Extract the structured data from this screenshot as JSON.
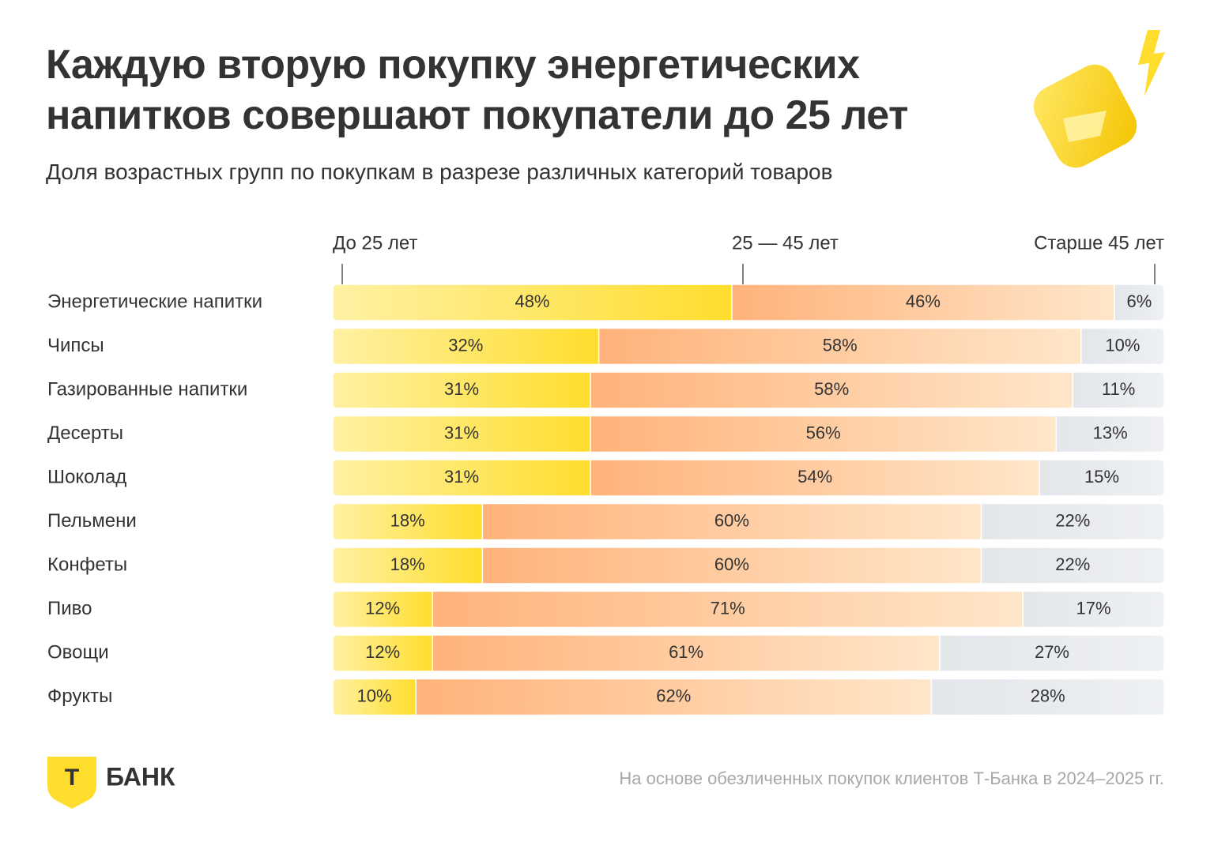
{
  "chart_data": {
    "type": "stacked-bar-horizontal",
    "title": "Каждую вторую покупку энергетических напитков совершают покупатели до 25 лет",
    "subtitle": "Доля возрастных групп по покупкам в разрезе различных категорий товаров",
    "categories": [
      "Энергетические напитки",
      "Чипсы",
      "Газированные напитки",
      "Десерты",
      "Шоколад",
      "Пельмени",
      "Конфеты",
      "Пиво",
      "Овощи",
      "Фрукты"
    ],
    "series": [
      {
        "name": "До 25 лет",
        "color": "#ffdd2d",
        "values": [
          48,
          32,
          31,
          31,
          31,
          18,
          18,
          12,
          12,
          10
        ],
        "value_labels": [
          "48%",
          "32%",
          "31%",
          "31%",
          "31%",
          "18%",
          "18%",
          "12%",
          "12%",
          "10%"
        ]
      },
      {
        "name": "25 — 45 лет",
        "color": "#ffb27a",
        "values": [
          46,
          58,
          58,
          56,
          54,
          60,
          60,
          71,
          61,
          62
        ],
        "value_labels": [
          "46%",
          "58%",
          "58%",
          "56%",
          "54%",
          "60%",
          "60%",
          "71%",
          "61%",
          "62%"
        ]
      },
      {
        "name": "Старше 45 лет",
        "color": "#e3e6ea",
        "values": [
          6,
          10,
          11,
          13,
          15,
          22,
          22,
          17,
          27,
          28
        ],
        "value_labels": [
          "6%",
          "10%",
          "11%",
          "13%",
          "15%",
          "22%",
          "22%",
          "17%",
          "27%",
          "28%"
        ]
      }
    ],
    "xlim": [
      0,
      100
    ],
    "note": "На основе обезличенных покупок клиентов Т-Банка в 2024–2025 гг.",
    "logo": {
      "mark": "Т",
      "text": "БАНК"
    }
  }
}
